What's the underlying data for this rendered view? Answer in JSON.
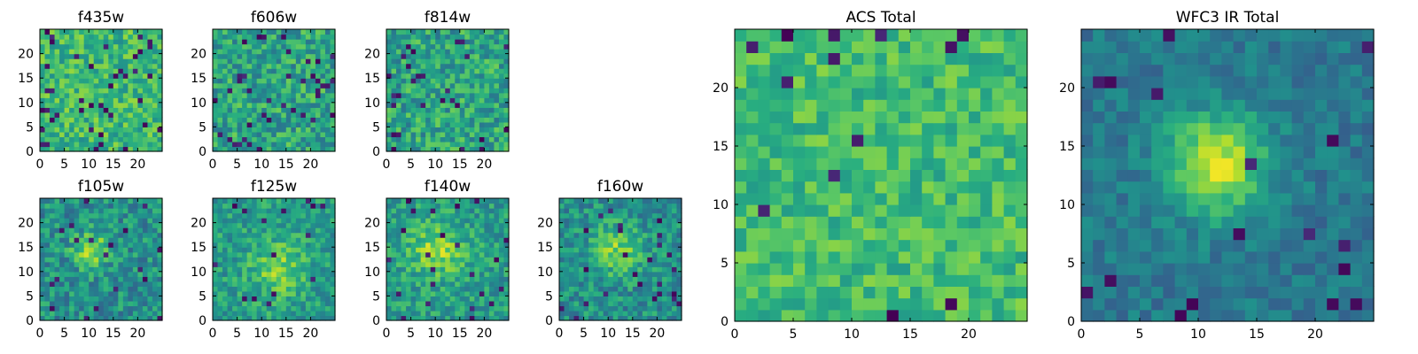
{
  "figure": {
    "title": ""
  },
  "colormap": {
    "name": "viridis",
    "stops": [
      "#440154",
      "#472d7b",
      "#3b528b",
      "#2c728e",
      "#21918c",
      "#28ae80",
      "#5ec962",
      "#addc30",
      "#fde725"
    ]
  },
  "chart_data": [
    {
      "id": "f435w",
      "type": "heatmap",
      "title": "f435w",
      "nx": 25,
      "ny": 25,
      "xticks": [
        0,
        5,
        10,
        15,
        20
      ],
      "yticks": [
        0,
        5,
        10,
        15,
        20
      ],
      "xlim": [
        0,
        25
      ],
      "ylim": [
        0,
        25
      ],
      "value_range": [
        0,
        1
      ],
      "mean": 0.66,
      "spread": 0.18,
      "blob": null,
      "seed": 11,
      "holes": 0.06
    },
    {
      "id": "f606w",
      "type": "heatmap",
      "title": "f606w",
      "nx": 25,
      "ny": 25,
      "xticks": [
        0,
        5,
        10,
        15,
        20
      ],
      "yticks": [
        0,
        5,
        10,
        15,
        20
      ],
      "xlim": [
        0,
        25
      ],
      "ylim": [
        0,
        25
      ],
      "value_range": [
        0,
        1
      ],
      "mean": 0.58,
      "spread": 0.2,
      "blob": null,
      "seed": 23,
      "holes": 0.05
    },
    {
      "id": "f814w",
      "type": "heatmap",
      "title": "f814w",
      "nx": 25,
      "ny": 25,
      "xticks": [
        0,
        5,
        10,
        15,
        20
      ],
      "yticks": [
        0,
        5,
        10,
        15,
        20
      ],
      "xlim": [
        0,
        25
      ],
      "ylim": [
        0,
        25
      ],
      "value_range": [
        0,
        1
      ],
      "mean": 0.58,
      "spread": 0.2,
      "blob": null,
      "seed": 37,
      "holes": 0.05
    },
    {
      "id": "f105w",
      "type": "heatmap",
      "title": "f105w",
      "nx": 25,
      "ny": 25,
      "xticks": [
        0,
        5,
        10,
        15,
        20
      ],
      "yticks": [
        0,
        5,
        10,
        15,
        20
      ],
      "xlim": [
        0,
        25
      ],
      "ylim": [
        0,
        25
      ],
      "value_range": [
        0,
        1
      ],
      "mean": 0.5,
      "spread": 0.18,
      "blob": {
        "x": 10,
        "y": 14,
        "amp": 0.35,
        "sigma": 2.5
      },
      "seed": 41,
      "holes": 0.04
    },
    {
      "id": "f125w",
      "type": "heatmap",
      "title": "f125w",
      "nx": 25,
      "ny": 25,
      "xticks": [
        0,
        5,
        10,
        15,
        20
      ],
      "yticks": [
        0,
        5,
        10,
        15,
        20
      ],
      "xlim": [
        0,
        25
      ],
      "ylim": [
        0,
        25
      ],
      "value_range": [
        0,
        1
      ],
      "mean": 0.55,
      "spread": 0.16,
      "blob": {
        "x": 13,
        "y": 10,
        "amp": 0.25,
        "sigma": 4
      },
      "seed": 53,
      "holes": 0.03
    },
    {
      "id": "f140w",
      "type": "heatmap",
      "title": "f140w",
      "nx": 25,
      "ny": 25,
      "xticks": [
        0,
        5,
        10,
        15,
        20
      ],
      "yticks": [
        0,
        5,
        10,
        15,
        20
      ],
      "xlim": [
        0,
        25
      ],
      "ylim": [
        0,
        25
      ],
      "value_range": [
        0,
        1
      ],
      "mean": 0.55,
      "spread": 0.16,
      "blob": {
        "x": 10,
        "y": 14,
        "amp": 0.28,
        "sigma": 4
      },
      "seed": 67,
      "holes": 0.03
    },
    {
      "id": "f160w",
      "type": "heatmap",
      "title": "f160w",
      "nx": 25,
      "ny": 25,
      "xticks": [
        0,
        5,
        10,
        15,
        20
      ],
      "yticks": [
        0,
        5,
        10,
        15,
        20
      ],
      "xlim": [
        0,
        25
      ],
      "ylim": [
        0,
        25
      ],
      "value_range": [
        0,
        1
      ],
      "mean": 0.5,
      "spread": 0.17,
      "blob": {
        "x": 11,
        "y": 14,
        "amp": 0.3,
        "sigma": 3.5
      },
      "seed": 79,
      "holes": 0.04
    },
    {
      "id": "acs-total",
      "type": "heatmap",
      "title": "ACS Total",
      "nx": 25,
      "ny": 25,
      "xticks": [
        0,
        5,
        10,
        15,
        20
      ],
      "yticks": [
        0,
        5,
        10,
        15,
        20
      ],
      "xlim": [
        0,
        25
      ],
      "ylim": [
        0,
        25
      ],
      "value_range": [
        0,
        1
      ],
      "mean": 0.68,
      "spread": 0.14,
      "blob": null,
      "seed": 97,
      "holes": 0.03
    },
    {
      "id": "wfc3-ir-total",
      "type": "heatmap",
      "title": "WFC3 IR Total",
      "nx": 25,
      "ny": 25,
      "xticks": [
        0,
        5,
        10,
        15,
        20
      ],
      "yticks": [
        0,
        5,
        10,
        15,
        20
      ],
      "xlim": [
        0,
        25
      ],
      "ylim": [
        0,
        25
      ],
      "value_range": [
        0,
        1
      ],
      "mean": 0.4,
      "spread": 0.1,
      "blob": {
        "x": 11,
        "y": 13,
        "amp": 0.55,
        "sigma": 3
      },
      "seed": 113,
      "holes": 0.03
    }
  ]
}
